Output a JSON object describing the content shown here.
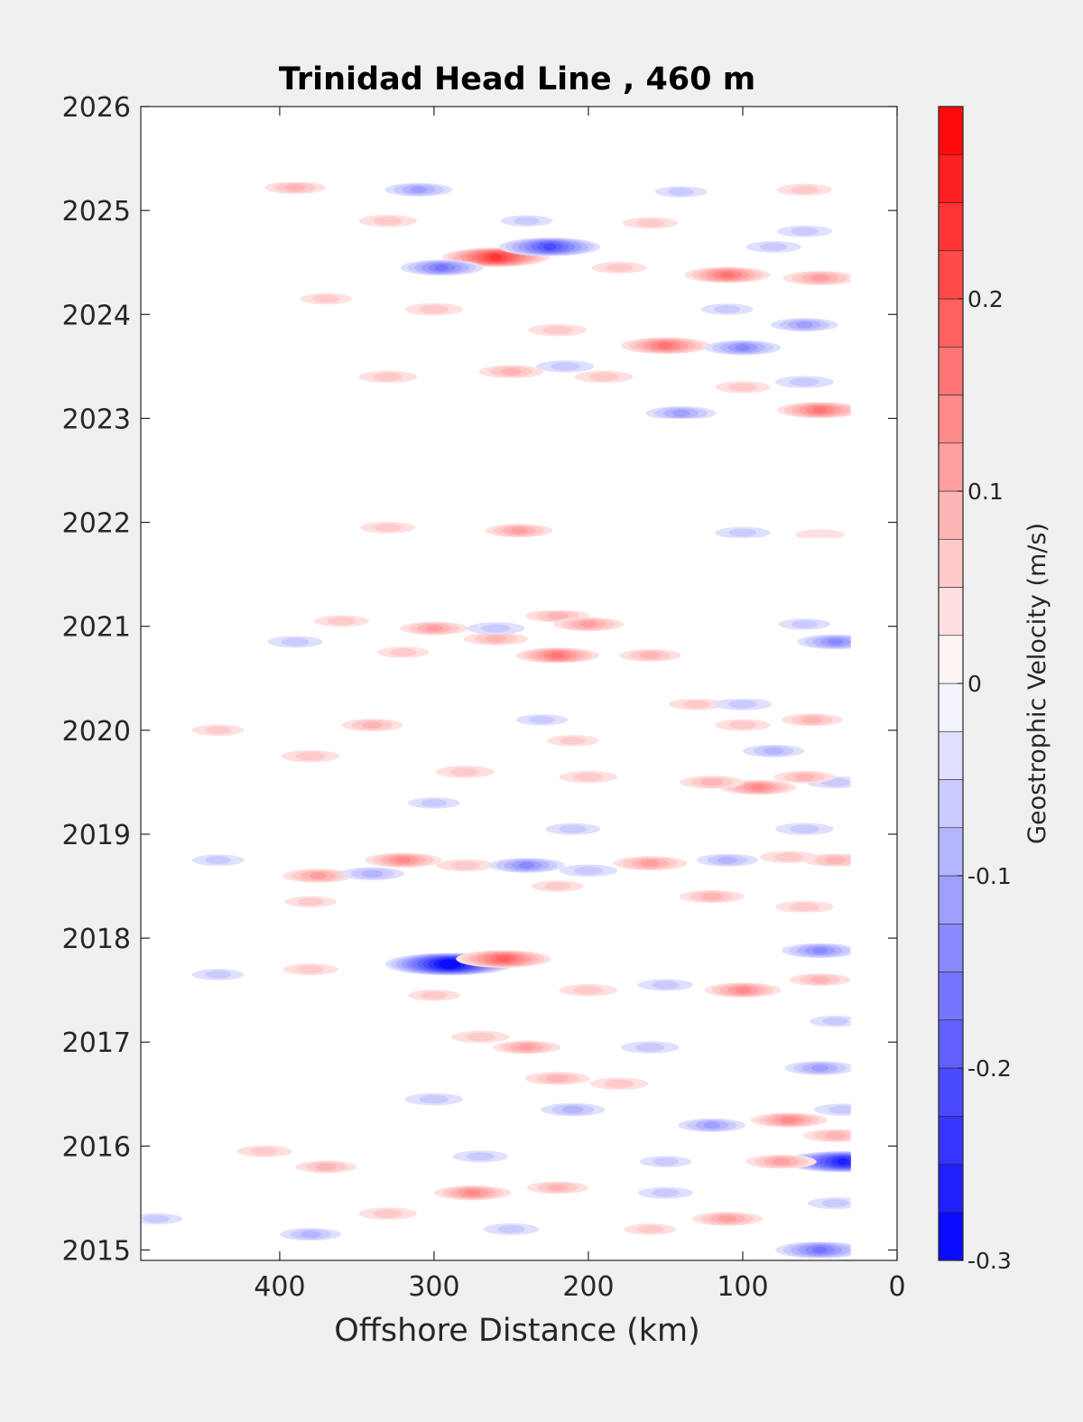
{
  "chart_data": {
    "type": "heatmap",
    "subtype": "filled-contour",
    "title": "Trinidad Head Line , 460 m",
    "xlabel": "Offshore Distance (km)",
    "ylabel": "",
    "xlim": [
      490,
      0
    ],
    "x_reversed": true,
    "ylim": [
      2014.9,
      2026
    ],
    "xticks": [
      400,
      300,
      200,
      100,
      0
    ],
    "xtick_labels": [
      "400",
      "300",
      "200",
      "100",
      "0"
    ],
    "yticks": [
      2015,
      2016,
      2017,
      2018,
      2019,
      2020,
      2021,
      2022,
      2023,
      2024,
      2025,
      2026
    ],
    "ytick_labels": [
      "2015",
      "2016",
      "2017",
      "2018",
      "2019",
      "2020",
      "2021",
      "2022",
      "2023",
      "2024",
      "2025",
      "2026"
    ],
    "grid": false,
    "colorbar": {
      "label": "Geostrophic Velocity (m/s)",
      "min": -0.3,
      "max": 0.3,
      "step": 0.025,
      "ticks": [
        -0.3,
        -0.2,
        -0.1,
        0,
        0.1,
        0.2
      ],
      "tick_labels": [
        "-0.3",
        "-0.2",
        "-0.1",
        "0",
        "0.1",
        "0.2"
      ],
      "negative_color": "#0000ff",
      "zero_color": "#ffffff",
      "positive_color": "#ff0000"
    },
    "data_coverage": [
      {
        "year_start": 2014.9,
        "year_end": 2017.95,
        "x_near": 30,
        "x_far": 490
      },
      {
        "year_start": 2018.25,
        "year_end": 2020.3,
        "x_near": 30,
        "x_far": 490
      },
      {
        "year_start": 2020.65,
        "year_end": 2021.15,
        "x_near": 30,
        "x_far": 420
      },
      {
        "year_start": 2021.85,
        "year_end": 2022.05,
        "x_near": 30,
        "x_far": 360
      },
      {
        "year_start": 2023.0,
        "year_end": 2025.0,
        "x_near": 30,
        "x_far": 420
      },
      {
        "year_start": 2025.1,
        "year_end": 2025.27,
        "x_near": 30,
        "x_far": 420
      }
    ],
    "anomalies": [
      {
        "x": 290,
        "y": 2017.75,
        "v": -0.29
      },
      {
        "x": 255,
        "y": 2017.8,
        "v": 0.18
      },
      {
        "x": 50,
        "y": 2017.88,
        "v": -0.12
      },
      {
        "x": 380,
        "y": 2017.7,
        "v": 0.05
      },
      {
        "x": 440,
        "y": 2017.65,
        "v": -0.04
      },
      {
        "x": 200,
        "y": 2017.5,
        "v": 0.06
      },
      {
        "x": 100,
        "y": 2017.5,
        "v": 0.12
      },
      {
        "x": 150,
        "y": 2017.55,
        "v": -0.05
      },
      {
        "x": 50,
        "y": 2017.6,
        "v": 0.07
      },
      {
        "x": 300,
        "y": 2017.45,
        "v": 0.04
      },
      {
        "x": 40,
        "y": 2017.2,
        "v": -0.04
      },
      {
        "x": 270,
        "y": 2017.05,
        "v": 0.06
      },
      {
        "x": 240,
        "y": 2016.95,
        "v": 0.09
      },
      {
        "x": 160,
        "y": 2016.95,
        "v": -0.06
      },
      {
        "x": 50,
        "y": 2016.75,
        "v": -0.1
      },
      {
        "x": 35,
        "y": 2016.35,
        "v": -0.06
      },
      {
        "x": 220,
        "y": 2016.65,
        "v": 0.08
      },
      {
        "x": 180,
        "y": 2016.6,
        "v": 0.06
      },
      {
        "x": 300,
        "y": 2016.45,
        "v": -0.06
      },
      {
        "x": 210,
        "y": 2016.35,
        "v": -0.08
      },
      {
        "x": 120,
        "y": 2016.2,
        "v": -0.09
      },
      {
        "x": 70,
        "y": 2016.25,
        "v": 0.12
      },
      {
        "x": 40,
        "y": 2016.1,
        "v": 0.08
      },
      {
        "x": 35,
        "y": 2015.85,
        "v": -0.26
      },
      {
        "x": 75,
        "y": 2015.85,
        "v": 0.1
      },
      {
        "x": 150,
        "y": 2015.85,
        "v": -0.04
      },
      {
        "x": 270,
        "y": 2015.9,
        "v": -0.05
      },
      {
        "x": 370,
        "y": 2015.8,
        "v": 0.07
      },
      {
        "x": 410,
        "y": 2015.95,
        "v": 0.05
      },
      {
        "x": 275,
        "y": 2015.55,
        "v": 0.12
      },
      {
        "x": 220,
        "y": 2015.6,
        "v": 0.07
      },
      {
        "x": 150,
        "y": 2015.55,
        "v": -0.05
      },
      {
        "x": 110,
        "y": 2015.3,
        "v": 0.1
      },
      {
        "x": 330,
        "y": 2015.35,
        "v": 0.06
      },
      {
        "x": 250,
        "y": 2015.2,
        "v": -0.05
      },
      {
        "x": 160,
        "y": 2015.2,
        "v": 0.04
      },
      {
        "x": 40,
        "y": 2015.45,
        "v": -0.05
      },
      {
        "x": 50,
        "y": 2015.0,
        "v": -0.16
      },
      {
        "x": 380,
        "y": 2015.15,
        "v": -0.07
      },
      {
        "x": 480,
        "y": 2015.3,
        "v": -0.04
      },
      {
        "x": 320,
        "y": 2018.75,
        "v": 0.12
      },
      {
        "x": 280,
        "y": 2018.7,
        "v": 0.06
      },
      {
        "x": 240,
        "y": 2018.7,
        "v": -0.12
      },
      {
        "x": 200,
        "y": 2018.65,
        "v": -0.06
      },
      {
        "x": 160,
        "y": 2018.72,
        "v": 0.11
      },
      {
        "x": 110,
        "y": 2018.75,
        "v": -0.07
      },
      {
        "x": 40,
        "y": 2018.75,
        "v": 0.08
      },
      {
        "x": 70,
        "y": 2018.78,
        "v": 0.06
      },
      {
        "x": 375,
        "y": 2018.6,
        "v": 0.1
      },
      {
        "x": 340,
        "y": 2018.62,
        "v": -0.08
      },
      {
        "x": 440,
        "y": 2018.75,
        "v": -0.04
      },
      {
        "x": 220,
        "y": 2018.5,
        "v": 0.04
      },
      {
        "x": 120,
        "y": 2018.4,
        "v": 0.08
      },
      {
        "x": 60,
        "y": 2018.3,
        "v": 0.06
      },
      {
        "x": 380,
        "y": 2018.35,
        "v": 0.04
      },
      {
        "x": 90,
        "y": 2019.45,
        "v": 0.12
      },
      {
        "x": 120,
        "y": 2019.5,
        "v": 0.08
      },
      {
        "x": 40,
        "y": 2019.5,
        "v": -0.06
      },
      {
        "x": 60,
        "y": 2019.55,
        "v": 0.07
      },
      {
        "x": 280,
        "y": 2019.6,
        "v": 0.06
      },
      {
        "x": 200,
        "y": 2019.55,
        "v": 0.06
      },
      {
        "x": 80,
        "y": 2019.8,
        "v": -0.07
      },
      {
        "x": 210,
        "y": 2019.05,
        "v": -0.05
      },
      {
        "x": 60,
        "y": 2019.05,
        "v": -0.06
      },
      {
        "x": 300,
        "y": 2019.3,
        "v": -0.04
      },
      {
        "x": 380,
        "y": 2019.75,
        "v": 0.06
      },
      {
        "x": 340,
        "y": 2020.05,
        "v": 0.07
      },
      {
        "x": 440,
        "y": 2020.0,
        "v": 0.04
      },
      {
        "x": 210,
        "y": 2019.9,
        "v": 0.04
      },
      {
        "x": 100,
        "y": 2020.05,
        "v": 0.05
      },
      {
        "x": 55,
        "y": 2020.1,
        "v": 0.07
      },
      {
        "x": 230,
        "y": 2020.1,
        "v": -0.04
      },
      {
        "x": 130,
        "y": 2020.25,
        "v": 0.05
      },
      {
        "x": 100,
        "y": 2020.25,
        "v": -0.06
      },
      {
        "x": 220,
        "y": 2020.72,
        "v": 0.14
      },
      {
        "x": 160,
        "y": 2020.72,
        "v": 0.07
      },
      {
        "x": 320,
        "y": 2020.75,
        "v": 0.04
      },
      {
        "x": 390,
        "y": 2020.85,
        "v": -0.05
      },
      {
        "x": 40,
        "y": 2020.85,
        "v": -0.12
      },
      {
        "x": 260,
        "y": 2020.88,
        "v": 0.08
      },
      {
        "x": 300,
        "y": 2020.98,
        "v": 0.09
      },
      {
        "x": 260,
        "y": 2020.98,
        "v": -0.06
      },
      {
        "x": 220,
        "y": 2021.1,
        "v": 0.08
      },
      {
        "x": 200,
        "y": 2021.02,
        "v": 0.1
      },
      {
        "x": 360,
        "y": 2021.05,
        "v": 0.05
      },
      {
        "x": 60,
        "y": 2021.02,
        "v": -0.04
      },
      {
        "x": 245,
        "y": 2021.92,
        "v": 0.09
      },
      {
        "x": 330,
        "y": 2021.95,
        "v": 0.05
      },
      {
        "x": 100,
        "y": 2021.9,
        "v": -0.05
      },
      {
        "x": 50,
        "y": 2021.88,
        "v": 0.03
      },
      {
        "x": 150,
        "y": 2023.7,
        "v": 0.16
      },
      {
        "x": 100,
        "y": 2023.68,
        "v": -0.12
      },
      {
        "x": 50,
        "y": 2023.08,
        "v": 0.15
      },
      {
        "x": 140,
        "y": 2023.05,
        "v": -0.1
      },
      {
        "x": 250,
        "y": 2023.45,
        "v": 0.08
      },
      {
        "x": 330,
        "y": 2023.4,
        "v": 0.06
      },
      {
        "x": 215,
        "y": 2023.5,
        "v": -0.06
      },
      {
        "x": 190,
        "y": 2023.4,
        "v": 0.06
      },
      {
        "x": 60,
        "y": 2023.35,
        "v": -0.06
      },
      {
        "x": 100,
        "y": 2023.3,
        "v": 0.05
      },
      {
        "x": 60,
        "y": 2023.9,
        "v": -0.09
      },
      {
        "x": 220,
        "y": 2023.85,
        "v": 0.06
      },
      {
        "x": 300,
        "y": 2024.05,
        "v": 0.06
      },
      {
        "x": 370,
        "y": 2024.15,
        "v": 0.04
      },
      {
        "x": 110,
        "y": 2024.38,
        "v": 0.15
      },
      {
        "x": 50,
        "y": 2024.35,
        "v": 0.11
      },
      {
        "x": 260,
        "y": 2024.55,
        "v": 0.22
      },
      {
        "x": 225,
        "y": 2024.65,
        "v": -0.2
      },
      {
        "x": 295,
        "y": 2024.45,
        "v": -0.14
      },
      {
        "x": 180,
        "y": 2024.45,
        "v": 0.05
      },
      {
        "x": 80,
        "y": 2024.65,
        "v": -0.05
      },
      {
        "x": 110,
        "y": 2024.05,
        "v": -0.04
      },
      {
        "x": 60,
        "y": 2024.8,
        "v": -0.05
      },
      {
        "x": 330,
        "y": 2024.9,
        "v": 0.06
      },
      {
        "x": 240,
        "y": 2024.9,
        "v": -0.04
      },
      {
        "x": 160,
        "y": 2024.88,
        "v": 0.05
      },
      {
        "x": 390,
        "y": 2025.22,
        "v": 0.07
      },
      {
        "x": 310,
        "y": 2025.2,
        "v": -0.09
      },
      {
        "x": 60,
        "y": 2025.2,
        "v": 0.05
      },
      {
        "x": 140,
        "y": 2025.18,
        "v": -0.04
      }
    ]
  }
}
